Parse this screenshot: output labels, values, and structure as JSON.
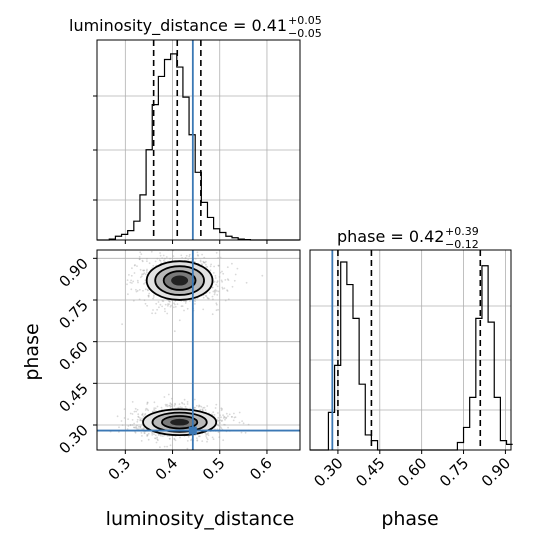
{
  "chart_data": {
    "type": "corner",
    "parameters": [
      "luminosity_distance",
      "phase"
    ],
    "truths": {
      "luminosity_distance": 0.443,
      "phase": 0.28
    },
    "panels": {
      "top_left": {
        "type": "histogram",
        "parameter": "luminosity_distance",
        "title": {
          "prefix": "luminosity_distance = 0.41",
          "sup": "+0.05",
          "sub": "−0.05"
        },
        "quantiles": [
          0.36,
          0.41,
          0.46
        ],
        "xlim": [
          0.24,
          0.67
        ],
        "bins_x": [
          0.24,
          0.253,
          0.266,
          0.279,
          0.292,
          0.305,
          0.318,
          0.331,
          0.344,
          0.357,
          0.37,
          0.383,
          0.396,
          0.409,
          0.422,
          0.435,
          0.448,
          0.461,
          0.474,
          0.487,
          0.5,
          0.513,
          0.526,
          0.539,
          0.552,
          0.565,
          0.578,
          0.591,
          0.604,
          0.617,
          0.63,
          0.643,
          0.656,
          0.669
        ],
        "counts": [
          0,
          0,
          0.5,
          2,
          3,
          5,
          10,
          24,
          48,
          72,
          87,
          96,
          99,
          92,
          76,
          56,
          36,
          20,
          12,
          6,
          4,
          2,
          1.2,
          0.5,
          0.2,
          0,
          0,
          0,
          0,
          0,
          0,
          0,
          0
        ],
        "ymax": 100
      },
      "bottom_right": {
        "type": "histogram",
        "parameter": "phase",
        "title": {
          "prefix": "phase = 0.42",
          "sup": "+0.39",
          "sub": "−0.12"
        },
        "quantiles": [
          0.3,
          0.42,
          0.81
        ],
        "xlim": [
          0.2,
          0.92
        ],
        "xticks": [
          "0.30",
          "0.45",
          "0.60",
          "0.75",
          "0.90"
        ],
        "xlabel": "phase",
        "bins_x": [
          0.2,
          0.222,
          0.244,
          0.266,
          0.288,
          0.31,
          0.332,
          0.354,
          0.376,
          0.398,
          0.42,
          0.442,
          0.464,
          0.486,
          0.508,
          0.53,
          0.552,
          0.574,
          0.596,
          0.618,
          0.64,
          0.662,
          0.684,
          0.706,
          0.728,
          0.75,
          0.772,
          0.794,
          0.816,
          0.838,
          0.86,
          0.882,
          0.904,
          0.926
        ],
        "counts": [
          0,
          0,
          0,
          20,
          45,
          100,
          88,
          70,
          35,
          8,
          5,
          0,
          0,
          0,
          0,
          0,
          0,
          0,
          0,
          0,
          0,
          0,
          0,
          0,
          4,
          12,
          28,
          70,
          98,
          68,
          28,
          5,
          3
        ],
        "ymax": 100
      },
      "bottom_left": {
        "type": "2d_density",
        "xlim": [
          0.24,
          0.67
        ],
        "ylim": [
          0.21,
          0.93
        ],
        "xticks": [
          "0.3",
          "0.4",
          "0.5",
          "0.6"
        ],
        "yticks": [
          "0.30",
          "0.45",
          "0.60",
          "0.75",
          "0.90"
        ],
        "xlabel": "luminosity_distance",
        "ylabel": "phase",
        "modes": [
          {
            "x": 0.415,
            "y": 0.82,
            "sx": 0.045,
            "sy": 0.045
          },
          {
            "x": 0.415,
            "y": 0.31,
            "sx": 0.05,
            "sy": 0.03
          }
        ]
      }
    }
  },
  "colors": {
    "truth": "#3b78b5",
    "hist": "#000000",
    "grid": "#b0b0b0",
    "axis": "#000000",
    "sample": "#aaaaaa"
  }
}
